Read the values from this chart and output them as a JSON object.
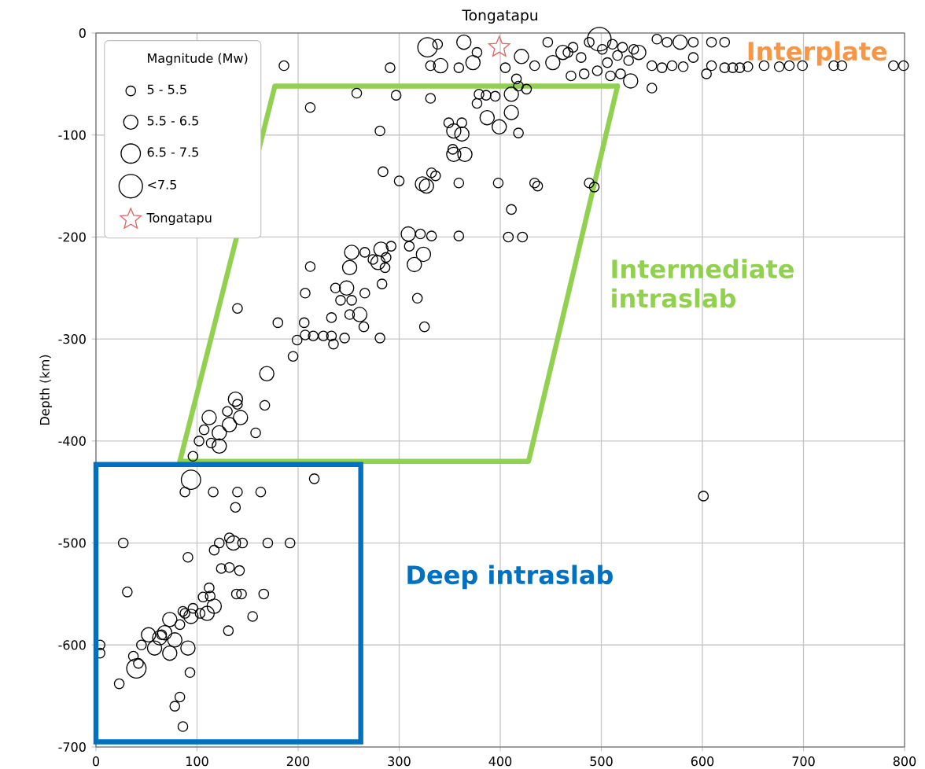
{
  "chart_data": {
    "type": "scatter",
    "title": "Tongatapu",
    "ylabel": "Depth (km)",
    "legend_title": "Magnitude (Mw)",
    "xlim": [
      0,
      800
    ],
    "xticks": [
      0,
      100,
      200,
      300,
      400,
      500,
      600,
      700,
      800
    ],
    "ylim": [
      -700,
      0
    ],
    "yticks": [
      -700,
      -600,
      -500,
      -400,
      -300,
      -200,
      -100,
      0
    ],
    "grid": true,
    "legend": "top left",
    "annotations": [
      "Interplate",
      "Intermediate intraslab",
      "Deep intraslab"
    ],
    "series": [
      {
        "name": "5 - 5.5",
        "color": "#000000",
        "marker": "circle",
        "x": [
          186,
          291,
          338,
          331,
          359,
          377,
          405,
          416,
          434,
          447,
          467,
          472,
          480,
          488,
          501,
          506,
          511,
          516,
          521,
          527,
          532,
          483,
          496,
          509,
          519,
          470,
          555,
          565,
          591,
          609,
          622,
          550,
          560,
          570,
          581,
          591,
          604,
          609,
          622,
          630,
          637,
          645,
          661,
          676,
          686,
          699,
          730,
          738,
          789,
          799,
          550,
          258,
          212,
          297,
          331,
          379,
          386,
          395,
          418,
          426,
          377,
          418,
          349,
          362,
          281,
          353,
          284,
          332,
          300,
          359,
          398,
          434,
          488,
          336,
          411,
          321,
          332,
          359,
          408,
          422,
          310,
          318,
          325,
          266,
          274,
          287,
          292,
          286,
          283,
          212,
          207,
          237,
          266,
          242,
          253,
          251,
          233,
          265,
          281,
          140,
          180,
          206,
          199,
          207,
          215,
          225,
          233,
          235,
          246,
          195,
          167,
          130,
          107,
          158,
          114,
          102,
          96,
          140,
          88,
          116,
          140,
          163,
          216,
          138,
          27,
          91,
          117,
          122,
          132,
          145,
          170,
          192,
          124,
          132,
          142,
          31,
          139,
          144,
          166,
          106,
          113,
          112,
          155,
          131,
          103,
          88,
          83,
          45,
          37,
          42,
          4,
          4,
          23,
          93,
          83,
          78,
          86,
          65,
          96,
          86,
          437,
          493,
          601
        ],
        "values": [
          -32,
          -34,
          -11,
          -32,
          -34,
          -19,
          -34,
          -45,
          -32,
          -9,
          -19,
          -14,
          -24,
          -9,
          -16,
          -29,
          -11,
          -22,
          -14,
          -27,
          -16,
          -40,
          -37,
          -42,
          -40,
          -42,
          -6,
          -9,
          -9,
          -9,
          -9,
          -32,
          -34,
          -32,
          -33,
          -24,
          -40,
          -32,
          -34,
          -34,
          -34,
          -33,
          -32,
          -33,
          -32,
          -32,
          -32,
          -32,
          -32,
          -32,
          -54,
          -59,
          -73,
          -61,
          -64,
          -60,
          -61,
          -62,
          -52,
          -55,
          -69,
          -98,
          -88,
          -88,
          -96,
          -114,
          -136,
          -137,
          -145,
          -147,
          -147,
          -147,
          -147,
          -140,
          -173,
          -197,
          -199,
          -199,
          -200,
          -200,
          -209,
          -260,
          -288,
          -215,
          -222,
          -220,
          -209,
          -230,
          -246,
          -229,
          -255,
          -250,
          -255,
          -262,
          -262,
          -276,
          -279,
          -288,
          -299,
          -270,
          -284,
          -284,
          -301,
          -296,
          -297,
          -297,
          -297,
          -305,
          -299,
          -317,
          -365,
          -371,
          -389,
          -392,
          -402,
          -400,
          -415,
          -364,
          -450,
          -450,
          -450,
          -450,
          -437,
          -465,
          -500,
          -514,
          -507,
          -500,
          -495,
          -500,
          -500,
          -500,
          -525,
          -524,
          -527,
          -548,
          -550,
          -550,
          -550,
          -553,
          -552,
          -544,
          -572,
          -586,
          -569,
          -569,
          -580,
          -600,
          -611,
          -618,
          -600,
          -608,
          -638,
          -627,
          -651,
          -660,
          -680,
          -590,
          -564,
          -567,
          -150,
          -151,
          -454
        ]
      },
      {
        "name": "5.5 - 6.5",
        "color": "#000000",
        "marker": "circle",
        "x": [
          341,
          364,
          373,
          421,
          452,
          462,
          537,
          529,
          578,
          411,
          411,
          387,
          399,
          354,
          362,
          354,
          365,
          323,
          327,
          309,
          324,
          315,
          253,
          251,
          279,
          282,
          248,
          261,
          169,
          138,
          143,
          112,
          122,
          122,
          132,
          136,
          117,
          110,
          94,
          73,
          68,
          52,
          63,
          78,
          58,
          73,
          91
        ],
        "values": [
          -32,
          -9,
          -29,
          -23,
          -29,
          -19,
          -19,
          -47,
          -9,
          -60,
          -78,
          -83,
          -92,
          -96,
          -99,
          -119,
          -119,
          -148,
          -150,
          -197,
          -217,
          -227,
          -215,
          -230,
          -225,
          -212,
          -250,
          -276,
          -334,
          -359,
          -377,
          -377,
          -392,
          -405,
          -384,
          -500,
          -562,
          -569,
          -572,
          -575,
          -588,
          -590,
          -593,
          -595,
          -603,
          -608,
          -603
        ]
      },
      {
        "name": "6.5 - 7.5",
        "color": "#000000",
        "marker": "circle",
        "x": [
          328,
          94,
          40
        ],
        "values": [
          -14,
          -438,
          -623
        ]
      },
      {
        "name": "<7.5",
        "color": "#000000",
        "marker": "circle",
        "x": [
          498
        ],
        "values": [
          -6
        ]
      },
      {
        "name": "Tongatapu",
        "color": "#e06666",
        "marker": "star",
        "x": [
          399
        ],
        "values": [
          -14
        ]
      },
      {
        "type": "line",
        "marker": "none",
        "color": "#92d050",
        "x": [
          83,
          177,
          516
        ],
        "values": [
          -420,
          -52,
          -52
        ]
      },
      {
        "type": "line",
        "marker": "none",
        "color": "#92d050",
        "x": [
          83,
          428,
          516
        ],
        "values": [
          -420,
          -420,
          -52
        ]
      }
    ]
  }
}
